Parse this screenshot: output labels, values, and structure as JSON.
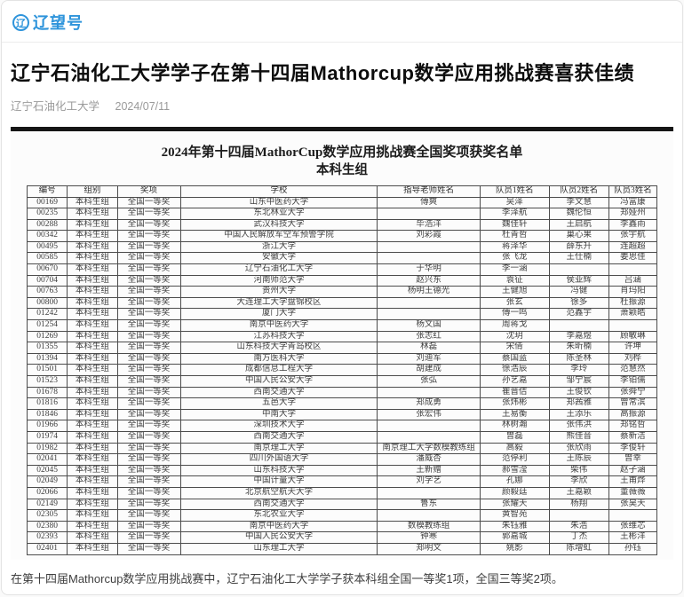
{
  "site": {
    "brand": "辽望号",
    "logo_glyph": "辽"
  },
  "article": {
    "title": "辽宁石油化工大学学子在第十四届Mathorcup数学应用挑战赛喜获佳绩",
    "source": "辽宁石油化工大学",
    "date": "2024/07/11",
    "caption": "在第十四届Mathorcup数学应用挑战赛中，辽宁石油化工大学学子获本科组全国一等奖1项，全国三等奖2项。"
  },
  "award_table": {
    "title": "2024年第十四届MathorCup数学应用挑战赛全国奖项获奖名单",
    "subtitle": "本科生组",
    "columns": [
      "编号",
      "组别",
      "奖项",
      "学校",
      "指导老师姓名",
      "队员1姓名",
      "队员2姓名",
      "队员3姓名"
    ],
    "rows": [
      [
        "00169",
        "本科生组",
        "全国一等奖",
        "山东中医药大学",
        "傅爽",
        "吴泽",
        "李文慧",
        "冯富康"
      ],
      [
        "00235",
        "本科生组",
        "全国一等奖",
        "东北林业大学",
        "",
        "李泽航",
        "魏伦恒",
        "郑娅州"
      ],
      [
        "00288",
        "本科生组",
        "全国一等奖",
        "武汉科技大学",
        "毕浩洋",
        "魏佳轩",
        "王启航",
        "李鑫雨"
      ],
      [
        "00342",
        "本科生组",
        "全国一等奖",
        "中国人民解放军空军预警学院",
        "刘彩霞",
        "杜青哲",
        "巢心果",
        "张宇航"
      ],
      [
        "00495",
        "本科生组",
        "全国一等奖",
        "浙江大学",
        "",
        "蒋泽华",
        "薛东升",
        "连超超"
      ],
      [
        "00585",
        "本科生组",
        "全国一等奖",
        "安徽大学",
        "",
        "张飞龙",
        "王仕楠",
        "姜思佳"
      ],
      [
        "00670",
        "本科生组",
        "全国一等奖",
        "辽宁石油化工大学",
        "于华明",
        "李一涵",
        "",
        ""
      ],
      [
        "00704",
        "本科生组",
        "全国一等奖",
        "河南师范大学",
        "赵兴东",
        "袁征",
        "侯亚辉",
        "吕涵"
      ],
      [
        "00763",
        "本科生组",
        "全国一等奖",
        "贵州大学",
        "杨明王德光",
        "王健旭",
        "冯健",
        "肖玛阳"
      ],
      [
        "00800",
        "本科生组",
        "全国一等奖",
        "大连理工大学盘锦校区",
        "",
        "张玄",
        "徐多",
        "杜振源"
      ],
      [
        "01242",
        "本科生组",
        "全国一等奖",
        "厦门大学",
        "",
        "傅一鸣",
        "范鑫宇",
        "萧颖皓"
      ],
      [
        "01254",
        "本科生组",
        "全国一等奖",
        "南京中医药大学",
        "杨文国",
        "周蒋戈",
        "",
        ""
      ],
      [
        "01269",
        "本科生组",
        "全国一等奖",
        "江苏科技大学",
        "张志红",
        "沈玥",
        "李嘉煜",
        "顾敏琳"
      ],
      [
        "01355",
        "本科生组",
        "全国一等奖",
        "山东科技大学青岛校区",
        "林磊",
        "宋倩",
        "朱昕楠",
        "许坤"
      ],
      [
        "01394",
        "本科生组",
        "全国一等奖",
        "南方医科大学",
        "刘迪军",
        "蔡国蓝",
        "陈圣林",
        "刘桦"
      ],
      [
        "01501",
        "本科生组",
        "全国一等奖",
        "成都信息工程大学",
        "胡建成",
        "徐浩辰",
        "李玲",
        "范慧然"
      ],
      [
        "01523",
        "本科生组",
        "全国一等奖",
        "中国人民公安大学",
        "张弘",
        "孙艺嘉",
        "邹宁宸",
        "李铂儒"
      ],
      [
        "01678",
        "本科生组",
        "全国一等奖",
        "西南交通大学",
        "",
        "崔晋佶",
        "王俊钦",
        "张舜宁"
      ],
      [
        "01816",
        "本科生组",
        "全国一等奖",
        "五邑大学",
        "郑成勇",
        "张炜彬",
        "郑茜雅",
        "曾常滨"
      ],
      [
        "01846",
        "本科生组",
        "全国一等奖",
        "中南大学",
        "张宏伟",
        "王易衡",
        "王添乐",
        "高振源"
      ],
      [
        "01966",
        "本科生组",
        "全国一等奖",
        "深圳技术大学",
        "",
        "林树瀚",
        "张伟洪",
        "郑铭哲"
      ],
      [
        "01974",
        "本科生组",
        "全国一等奖",
        "西南交通大学",
        "",
        "曾磊",
        "熊佳音",
        "蔡新洁"
      ],
      [
        "01982",
        "本科生组",
        "全国一等奖",
        "南京理工大学",
        "南京理工大学数模教练组",
        "高毅",
        "张欣雨",
        "李俊轩"
      ],
      [
        "02041",
        "本科生组",
        "全国一等奖",
        "四川外国语大学",
        "潘威杏",
        "范停利",
        "王陈辰",
        "曾幸"
      ],
      [
        "02045",
        "本科生组",
        "全国一等奖",
        "山东科技大学",
        "王新赠",
        "郝雪滢",
        "柴伟",
        "赵子涵"
      ],
      [
        "02049",
        "本科生组",
        "全国一等奖",
        "中国计量大学",
        "刘学艺",
        "孔娜",
        "李欣",
        "王甫烨"
      ],
      [
        "02066",
        "本科生组",
        "全国一等奖",
        "北京航空航天大学",
        "",
        "颜毅廷",
        "王嘉颖",
        "董薇薇"
      ],
      [
        "02149",
        "本科生组",
        "全国一等奖",
        "西南交通大学",
        "鲁东",
        "张耀天",
        "杨翔",
        "张昊天"
      ],
      [
        "02305",
        "本科生组",
        "全国一等奖",
        "东北农业大学",
        "",
        "黄智苑",
        "",
        ""
      ],
      [
        "02380",
        "本科生组",
        "全国一等奖",
        "南京中医药大学",
        "数模教练组",
        "朱钰雅",
        "朱浩",
        "张维芯"
      ],
      [
        "02393",
        "本科生组",
        "全国一等奖",
        "中国人民公安大学",
        "钟寒",
        "郭嘉城",
        "丁杰",
        "王彬洋"
      ],
      [
        "02401",
        "本科生组",
        "全国一等奖",
        "山东理工大学",
        "郑明文",
        "姚影",
        "陈增虹",
        "孙钰"
      ]
    ]
  },
  "colors": {
    "brand_blue": "#2E94DB",
    "figure_topbar": "#161616",
    "table_border": "#4c4c4c"
  }
}
